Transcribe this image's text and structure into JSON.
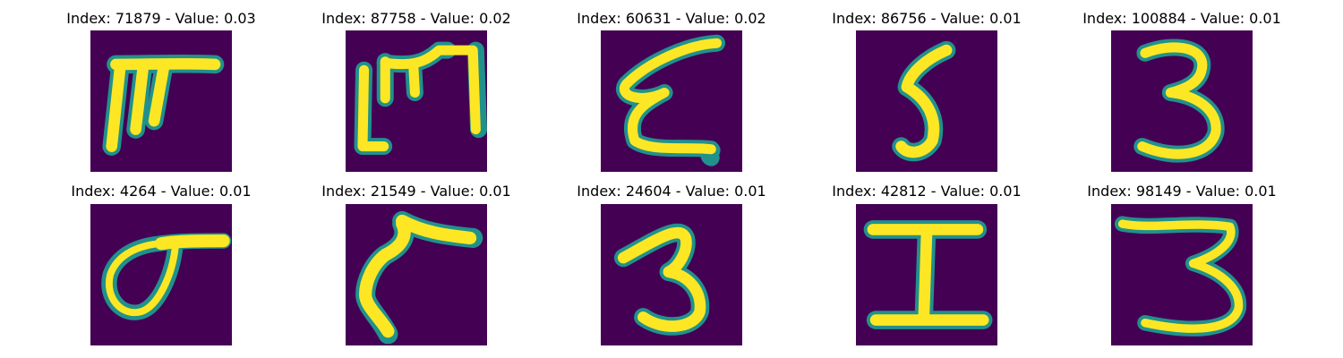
{
  "colors": {
    "background": "#440154",
    "mid": "#21918c",
    "foreground": "#fde725"
  },
  "panels": [
    {
      "index": "71879",
      "value": "0.03",
      "title": "Index: 71879 - Value: 0.03",
      "glyph": "ruled-F-stroke"
    },
    {
      "index": "87758",
      "value": "0.02",
      "title": "Index: 87758 - Value: 0.02",
      "glyph": "bracket-m-stroke"
    },
    {
      "index": "60631",
      "value": "0.02",
      "title": "Index: 60631 - Value: 0.02",
      "glyph": "cursive-E-stroke"
    },
    {
      "index": "86756",
      "value": "0.01",
      "title": "Index: 86756 - Value: 0.01",
      "glyph": "five-stroke"
    },
    {
      "index": "100884",
      "value": "0.01",
      "title": "Index: 100884 - Value: 0.01",
      "glyph": "three-stroke"
    },
    {
      "index": "4264",
      "value": "0.01",
      "title": "Index: 4264 - Value: 0.01",
      "glyph": "loop-stroke"
    },
    {
      "index": "21549",
      "value": "0.01",
      "title": "Index: 21549 - Value: 0.01",
      "glyph": "hook-stroke"
    },
    {
      "index": "24604",
      "value": "0.01",
      "title": "Index: 24604 - Value: 0.01",
      "glyph": "three-stroke"
    },
    {
      "index": "42812",
      "value": "0.01",
      "title": "Index: 42812 - Value: 0.01",
      "glyph": "serif-I-stroke"
    },
    {
      "index": "98149",
      "value": "0.01",
      "title": "Index: 98149 - Value: 0.01",
      "glyph": "three-stroke"
    }
  ]
}
